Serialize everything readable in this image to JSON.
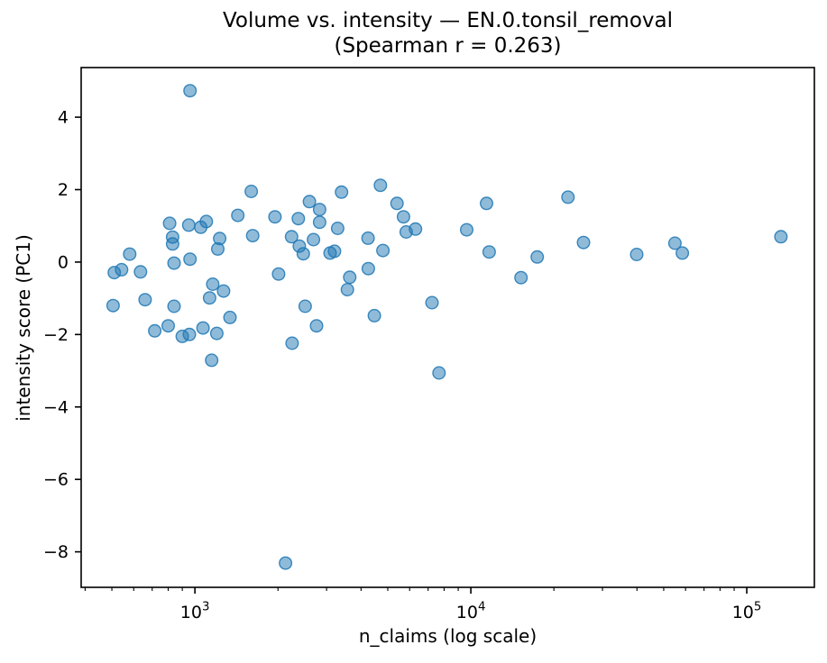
{
  "figure": {
    "title_line1": "Volume vs. intensity — EN.0.tonsil_removal",
    "title_line2": "(Spearman r = 0.263)",
    "xlabel": "n_claims (log scale)",
    "ylabel": "intensity score (PC1)"
  },
  "chart_data": {
    "type": "scatter",
    "title": "Volume vs. intensity — EN.0.tonsil_removal (Spearman r = 0.263)",
    "subtitle": "(Spearman r = 0.263)",
    "spearman_r": 0.263,
    "xlabel": "n_claims (log scale)",
    "ylabel": "intensity score (PC1)",
    "x_scale": "log10",
    "grid": false,
    "legend": "none",
    "xlim": [
      387,
      175800
    ],
    "ylim": [
      -8.98,
      5.37
    ],
    "x_major_ticks": [
      1000,
      10000,
      100000
    ],
    "x_minor_ticks": [
      400,
      500,
      600,
      700,
      800,
      900,
      2000,
      3000,
      4000,
      5000,
      6000,
      7000,
      8000,
      9000,
      20000,
      30000,
      40000,
      50000,
      60000,
      70000,
      80000,
      90000
    ],
    "y_ticks": [
      4,
      2,
      0,
      -2,
      -4,
      -6,
      -8
    ],
    "marker": {
      "color": "#1f77b4",
      "fill_opacity": 0.5,
      "stroke_opacity": 0.85,
      "radius": 6.8
    },
    "axes_color": "#000000",
    "points": [
      [
        960,
        4.73
      ],
      [
        1600,
        1.95
      ],
      [
        810,
        1.07
      ],
      [
        950,
        1.02
      ],
      [
        1050,
        0.96
      ],
      [
        1100,
        1.12
      ],
      [
        1430,
        1.29
      ],
      [
        1620,
        0.73
      ],
      [
        830,
        0.69
      ],
      [
        830,
        0.5
      ],
      [
        1230,
        0.65
      ],
      [
        1210,
        0.36
      ],
      [
        580,
        0.22
      ],
      [
        510,
        -0.29
      ],
      [
        542,
        -0.21
      ],
      [
        635,
        -0.27
      ],
      [
        840,
        -0.03
      ],
      [
        960,
        0.08
      ],
      [
        1160,
        -0.61
      ],
      [
        1270,
        -0.8
      ],
      [
        1130,
        -0.99
      ],
      [
        505,
        -1.2
      ],
      [
        660,
        -1.04
      ],
      [
        840,
        -1.22
      ],
      [
        1340,
        -1.53
      ],
      [
        715,
        -1.9
      ],
      [
        800,
        -1.76
      ],
      [
        900,
        -2.05
      ],
      [
        955,
        -2.0
      ],
      [
        1070,
        -1.82
      ],
      [
        1200,
        -1.97
      ],
      [
        1150,
        -2.71
      ],
      [
        4700,
        2.12
      ],
      [
        3400,
        1.93
      ],
      [
        2600,
        1.67
      ],
      [
        2830,
        1.45
      ],
      [
        2830,
        1.1
      ],
      [
        1950,
        1.25
      ],
      [
        2370,
        1.2
      ],
      [
        5400,
        1.62
      ],
      [
        5700,
        1.25
      ],
      [
        5830,
        0.83
      ],
      [
        6300,
        0.91
      ],
      [
        3290,
        0.93
      ],
      [
        2240,
        0.7
      ],
      [
        2690,
        0.62
      ],
      [
        4240,
        0.66
      ],
      [
        2390,
        0.44
      ],
      [
        2470,
        0.23
      ],
      [
        3090,
        0.25
      ],
      [
        3205,
        0.3
      ],
      [
        4800,
        0.32
      ],
      [
        4250,
        -0.18
      ],
      [
        2010,
        -0.33
      ],
      [
        3640,
        -0.42
      ],
      [
        3570,
        -0.76
      ],
      [
        7230,
        -1.12
      ],
      [
        2510,
        -1.22
      ],
      [
        4470,
        -1.48
      ],
      [
        2760,
        -1.76
      ],
      [
        2250,
        -2.24
      ],
      [
        7670,
        -3.06
      ],
      [
        11400,
        1.62
      ],
      [
        22500,
        1.79
      ],
      [
        9660,
        0.89
      ],
      [
        11650,
        0.28
      ],
      [
        17400,
        0.14
      ],
      [
        25600,
        0.54
      ],
      [
        39900,
        0.21
      ],
      [
        15200,
        -0.43
      ],
      [
        54900,
        0.52
      ],
      [
        58400,
        0.25
      ],
      [
        133000,
        0.7
      ],
      [
        2130,
        -8.31
      ]
    ]
  }
}
